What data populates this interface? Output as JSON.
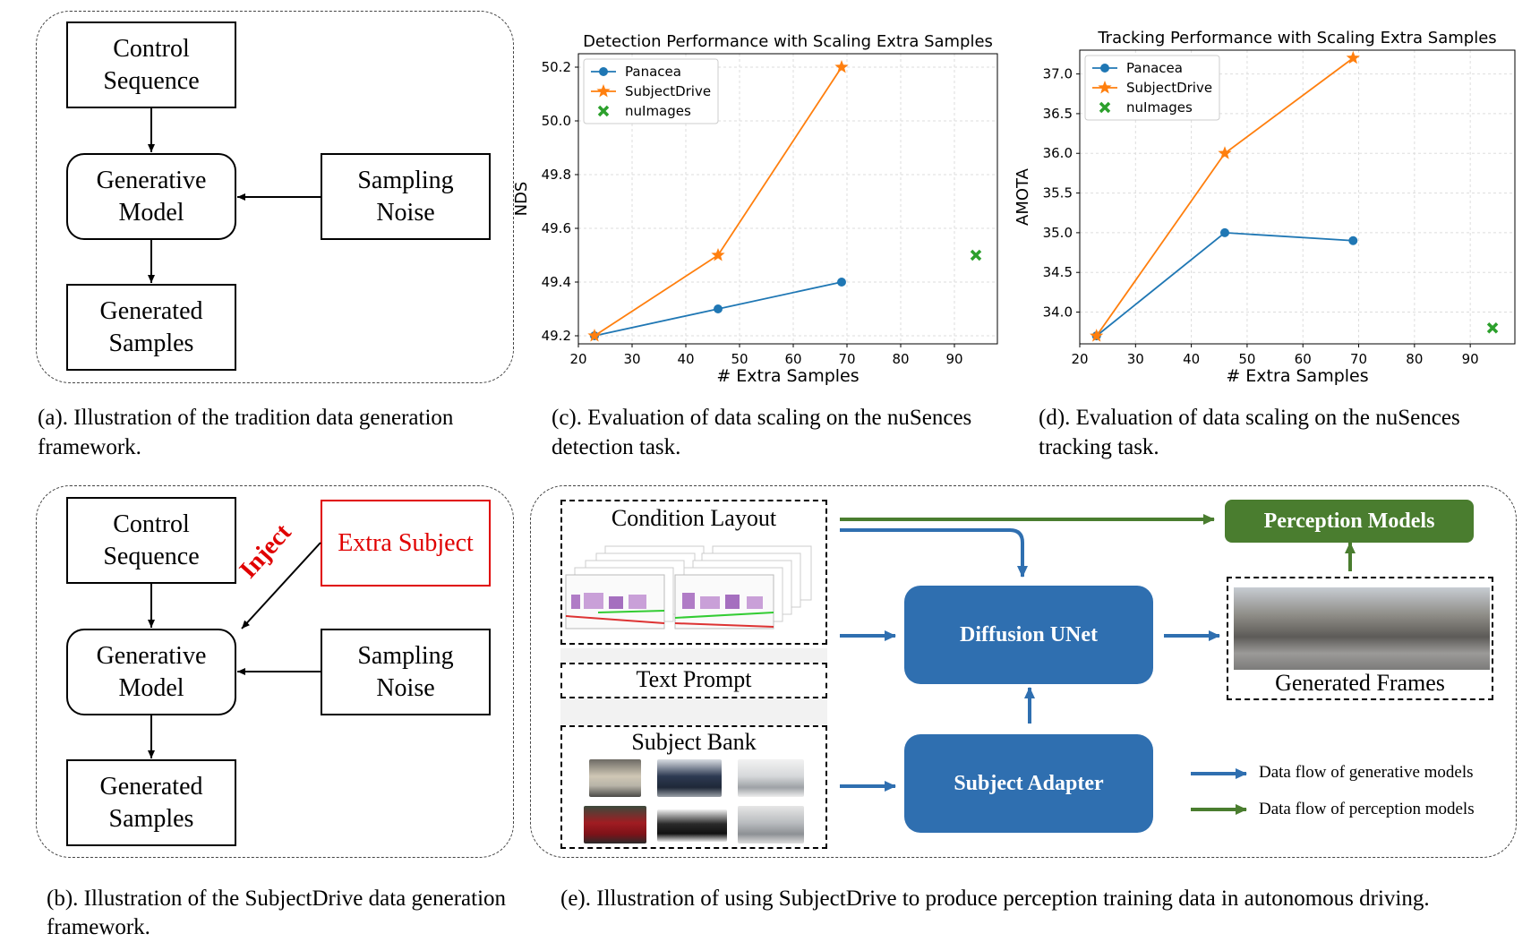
{
  "panel_a": {
    "control_sequence": "Control\nSequence",
    "generative_model": "Generative\nModel",
    "sampling_noise": "Sampling\nNoise",
    "generated_samples": "Generated\nSamples",
    "caption_line1": "(a). Illustration of the tradition data generation",
    "caption_line2": "framework."
  },
  "panel_b": {
    "control_sequence": "Control\nSequence",
    "extra_subject": "Extra Subject",
    "inject_label": "Inject",
    "generative_model": "Generative\nModel",
    "sampling_noise": "Sampling\nNoise",
    "generated_samples": "Generated\nSamples",
    "caption_line1": "(b). Illustration of the SubjectDrive data generation",
    "caption_line2": "framework."
  },
  "panel_c_caption": {
    "line1": "(c). Evaluation of data scaling on the nuSences",
    "line2": "detection task."
  },
  "panel_d_caption": {
    "line1": "(d). Evaluation of data scaling on the nuSences",
    "line2": "tracking task."
  },
  "panel_e": {
    "condition_layout": "Condition Layout",
    "text_prompt": "Text Prompt",
    "subject_bank": "Subject Bank",
    "diffusion_unet": "Diffusion UNet",
    "subject_adapter": "Subject Adapter",
    "perception_models": "Perception Models",
    "generated_frames": "Generated Frames",
    "legend_generative": "Data flow of generative models",
    "legend_perception": "Data flow of perception models",
    "caption": "(e). Illustration of using SubjectDrive to produce perception training data in autonomous driving."
  },
  "colors": {
    "blue_flow": "#2f6fb0",
    "green_flow": "#4a7d2f",
    "extra_subject_red": "#e00000",
    "panacea": "#1f77b4",
    "subjectdrive": "#ff7f0e",
    "nuimages": "#2ca02c"
  },
  "chart_data": [
    {
      "type": "line",
      "title": "Detection Performance with Scaling Extra Samples",
      "xlabel": "# Extra Samples",
      "ylabel": "NDS",
      "xlim": [
        20,
        98
      ],
      "ylim": [
        49.17,
        50.25
      ],
      "xticks": [
        20,
        30,
        40,
        50,
        60,
        70,
        80,
        90
      ],
      "yticks": [
        49.2,
        49.4,
        49.6,
        49.8,
        50.0,
        50.2
      ],
      "grid": true,
      "legend": "top-left",
      "series": [
        {
          "name": "Panacea",
          "marker": "circle",
          "x": [
            23,
            46,
            69
          ],
          "y": [
            49.2,
            49.3,
            49.4
          ]
        },
        {
          "name": "SubjectDrive",
          "marker": "star",
          "x": [
            23,
            46,
            69
          ],
          "y": [
            49.2,
            49.5,
            50.2
          ]
        },
        {
          "name": "nuImages",
          "marker": "x",
          "x": [
            94
          ],
          "y": [
            49.5
          ]
        }
      ]
    },
    {
      "type": "line",
      "title": "Tracking Performance with Scaling Extra Samples",
      "xlabel": "# Extra Samples",
      "ylabel": "AMOTA",
      "xlim": [
        20,
        98
      ],
      "ylim": [
        33.6,
        37.3
      ],
      "xticks": [
        20,
        30,
        40,
        50,
        60,
        70,
        80,
        90
      ],
      "yticks": [
        34.0,
        34.5,
        35.0,
        35.5,
        36.0,
        36.5,
        37.0
      ],
      "grid": true,
      "legend": "top-left",
      "series": [
        {
          "name": "Panacea",
          "marker": "circle",
          "x": [
            23,
            46,
            69
          ],
          "y": [
            33.7,
            35.0,
            34.9
          ]
        },
        {
          "name": "SubjectDrive",
          "marker": "star",
          "x": [
            23,
            46,
            69
          ],
          "y": [
            33.7,
            36.0,
            37.2
          ]
        },
        {
          "name": "nuImages",
          "marker": "x",
          "x": [
            94
          ],
          "y": [
            33.8
          ]
        }
      ]
    }
  ]
}
